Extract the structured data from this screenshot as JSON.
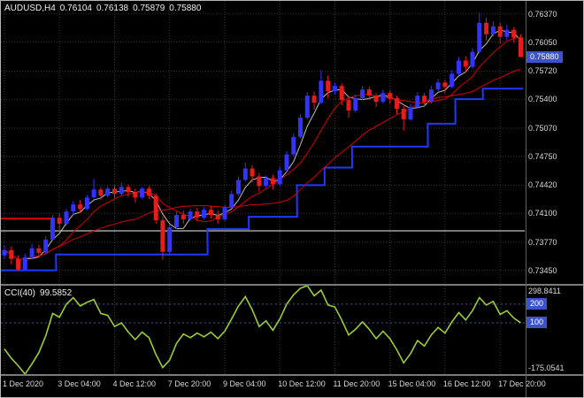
{
  "header": {
    "symbol": "AUDUSD,H4",
    "open": "0.76104",
    "high": "0.76138",
    "low": "0.75879",
    "close": "0.75880"
  },
  "indicator": {
    "name": "CCI(40)",
    "value": "99.5852"
  },
  "colors": {
    "background": "#000000",
    "border": "#b4b4b4",
    "grid": "#383838",
    "bull": "#3333ff",
    "bear": "#e81c1c",
    "step_line": "#2038ff",
    "ma_white": "#bdbdbd",
    "ma_red": "#d40000",
    "hline_dark": "#787878",
    "hline_red": "#d40000",
    "cci_line": "#9acd32",
    "level_line": "#44549e",
    "badge": "#3c52cc",
    "axis_text": "#d9d9d9",
    "separator": "#7a7a7a"
  },
  "chart_data": [
    {
      "type": "candlestick",
      "title": "AUDUSD,H4",
      "ylim": [
        0.73295,
        0.7652
      ],
      "y_ticks": [
        "0.76370",
        "0.76050",
        "0.75720",
        "0.75400",
        "0.75070",
        "0.74750",
        "0.74420",
        "0.74100",
        "0.73770",
        "0.73450"
      ],
      "current_price": "0.75880",
      "x_ticks": [
        {
          "i": 0,
          "label": "1 Dec 2020"
        },
        {
          "i": 8,
          "label": "3 Dec 04:00"
        },
        {
          "i": 16,
          "label": "4 Dec 12:00"
        },
        {
          "i": 24,
          "label": "7 Dec 20:00"
        },
        {
          "i": 32,
          "label": "9 Dec 04:00"
        },
        {
          "i": 40,
          "label": "10 Dec 12:00"
        },
        {
          "i": 48,
          "label": "11 Dec 20:00"
        },
        {
          "i": 56,
          "label": "15 Dec 04:00"
        },
        {
          "i": 64,
          "label": "16 Dec 12:00"
        },
        {
          "i": 72,
          "label": "17 Dec 20:00"
        }
      ],
      "candles": [
        [
          0.7362,
          0.7374,
          0.7358,
          0.7368
        ],
        [
          0.7368,
          0.7372,
          0.7352,
          0.7358
        ],
        [
          0.7358,
          0.7362,
          0.7344,
          0.7346
        ],
        [
          0.7346,
          0.7364,
          0.7345,
          0.736
        ],
        [
          0.736,
          0.7375,
          0.7358,
          0.737
        ],
        [
          0.737,
          0.7374,
          0.736,
          0.7365
        ],
        [
          0.7365,
          0.7384,
          0.7363,
          0.738
        ],
        [
          0.738,
          0.7408,
          0.7378,
          0.7405
        ],
        [
          0.7405,
          0.741,
          0.7392,
          0.7398
        ],
        [
          0.7398,
          0.7415,
          0.7396,
          0.7412
        ],
        [
          0.7412,
          0.7424,
          0.7408,
          0.742
        ],
        [
          0.742,
          0.7425,
          0.741,
          0.7415
        ],
        [
          0.7415,
          0.7431,
          0.7413,
          0.7428
        ],
        [
          0.7428,
          0.7449,
          0.7426,
          0.7437
        ],
        [
          0.7437,
          0.744,
          0.7425,
          0.743
        ],
        [
          0.743,
          0.7441,
          0.7428,
          0.7438
        ],
        [
          0.7438,
          0.7442,
          0.7427,
          0.7432
        ],
        [
          0.7432,
          0.7445,
          0.743,
          0.744
        ],
        [
          0.744,
          0.7443,
          0.7429,
          0.7434
        ],
        [
          0.7434,
          0.7438,
          0.7422,
          0.7428
        ],
        [
          0.7428,
          0.744,
          0.7426,
          0.7438
        ],
        [
          0.7438,
          0.7441,
          0.7426,
          0.743
        ],
        [
          0.743,
          0.7433,
          0.7398,
          0.7402
        ],
        [
          0.7402,
          0.7406,
          0.7357,
          0.7366
        ],
        [
          0.7366,
          0.7398,
          0.7362,
          0.7394
        ],
        [
          0.7394,
          0.7412,
          0.7392,
          0.7408
        ],
        [
          0.7408,
          0.7413,
          0.7398,
          0.7403
        ],
        [
          0.7403,
          0.7415,
          0.7401,
          0.7412
        ],
        [
          0.7412,
          0.7416,
          0.7401,
          0.7405
        ],
        [
          0.7405,
          0.7417,
          0.7403,
          0.7414
        ],
        [
          0.7414,
          0.7418,
          0.7404,
          0.7408
        ],
        [
          0.7408,
          0.7413,
          0.7398,
          0.7403
        ],
        [
          0.7403,
          0.742,
          0.7401,
          0.7417
        ],
        [
          0.7417,
          0.7436,
          0.7415,
          0.7432
        ],
        [
          0.7432,
          0.7452,
          0.743,
          0.7448
        ],
        [
          0.7448,
          0.7468,
          0.7446,
          0.7461
        ],
        [
          0.7461,
          0.7465,
          0.7445,
          0.7452
        ],
        [
          0.7452,
          0.7456,
          0.7434,
          0.7441
        ],
        [
          0.7441,
          0.7453,
          0.7439,
          0.745
        ],
        [
          0.745,
          0.7454,
          0.7437,
          0.7443
        ],
        [
          0.7443,
          0.7463,
          0.7441,
          0.7459
        ],
        [
          0.7459,
          0.7481,
          0.7457,
          0.7477
        ],
        [
          0.7477,
          0.7501,
          0.7475,
          0.7497
        ],
        [
          0.7497,
          0.7523,
          0.7495,
          0.7519
        ],
        [
          0.7519,
          0.7548,
          0.7517,
          0.7544
        ],
        [
          0.7544,
          0.7549,
          0.7528,
          0.7536
        ],
        [
          0.7536,
          0.7573,
          0.7534,
          0.7561
        ],
        [
          0.7561,
          0.7567,
          0.7541,
          0.7549
        ],
        [
          0.7549,
          0.7559,
          0.7545,
          0.7555
        ],
        [
          0.7555,
          0.7558,
          0.7533,
          0.7539
        ],
        [
          0.7539,
          0.7543,
          0.7519,
          0.7527
        ],
        [
          0.7527,
          0.7545,
          0.7525,
          0.7541
        ],
        [
          0.7541,
          0.7555,
          0.7539,
          0.7551
        ],
        [
          0.7551,
          0.7554,
          0.7539,
          0.7544
        ],
        [
          0.7544,
          0.7547,
          0.7531,
          0.7537
        ],
        [
          0.7537,
          0.7551,
          0.7535,
          0.7547
        ],
        [
          0.7547,
          0.755,
          0.7535,
          0.7541
        ],
        [
          0.7541,
          0.7544,
          0.7523,
          0.7529
        ],
        [
          0.7529,
          0.7532,
          0.7504,
          0.7517
        ],
        [
          0.7517,
          0.7535,
          0.7515,
          0.7531
        ],
        [
          0.7531,
          0.7548,
          0.7529,
          0.7544
        ],
        [
          0.7544,
          0.7547,
          0.7531,
          0.7537
        ],
        [
          0.7537,
          0.7555,
          0.7535,
          0.7551
        ],
        [
          0.7551,
          0.7563,
          0.7549,
          0.7559
        ],
        [
          0.7559,
          0.7562,
          0.7547,
          0.7554
        ],
        [
          0.7554,
          0.7573,
          0.7552,
          0.7569
        ],
        [
          0.7569,
          0.7588,
          0.7567,
          0.7584
        ],
        [
          0.7584,
          0.7589,
          0.7571,
          0.7577
        ],
        [
          0.7577,
          0.7598,
          0.7575,
          0.7594
        ],
        [
          0.7594,
          0.7639,
          0.7592,
          0.7627
        ],
        [
          0.7627,
          0.7633,
          0.7607,
          0.7614
        ],
        [
          0.7614,
          0.7629,
          0.7611,
          0.7623
        ],
        [
          0.7623,
          0.7627,
          0.7603,
          0.7611
        ],
        [
          0.7611,
          0.7625,
          0.7607,
          0.7619
        ],
        [
          0.7619,
          0.7622,
          0.7604,
          0.761
        ],
        [
          0.76104,
          0.76138,
          0.75879,
          0.7588
        ]
      ],
      "moving_averages": [
        {
          "period": 4,
          "color_key": "ma_white"
        },
        {
          "period": 8,
          "color_key": "ma_red"
        },
        {
          "period": 20,
          "color_key": "ma_red"
        }
      ],
      "step_line": {
        "color_key": "step_line",
        "segments": [
          [
            0,
            7,
            0.7345
          ],
          [
            8,
            29,
            0.7363
          ],
          [
            30,
            35,
            0.7392
          ],
          [
            36,
            42,
            0.7406
          ],
          [
            43,
            46,
            0.7442
          ],
          [
            47,
            50,
            0.7462
          ],
          [
            51,
            61,
            0.7486
          ],
          [
            62,
            65,
            0.7512
          ],
          [
            66,
            69,
            0.754
          ],
          [
            70,
            79,
            0.7552
          ]
        ]
      },
      "hlines": [
        {
          "price": 0.739,
          "x_from": 0,
          "x_to": 592,
          "color_key": "hline_dark",
          "w": 2
        },
        {
          "price": 0.7404,
          "x_from": 0,
          "x_to": 58,
          "color_key": "hline_red",
          "w": 2
        }
      ]
    },
    {
      "type": "line",
      "title": "CCI(40)",
      "ylim": [
        -175.0541,
        298.8411
      ],
      "scale_labels": {
        "top": "298.8411",
        "bottom": "-175.0541"
      },
      "levels": [
        {
          "value": 200,
          "label": "200"
        },
        {
          "value": 100,
          "label": "100"
        }
      ],
      "values": [
        -40,
        -90,
        -130,
        -175,
        -120,
        -60,
        30,
        150,
        130,
        200,
        235,
        190,
        210,
        225,
        150,
        140,
        80,
        100,
        50,
        10,
        50,
        20,
        -70,
        -140,
        -100,
        -10,
        40,
        20,
        45,
        25,
        50,
        15,
        55,
        120,
        190,
        240,
        170,
        80,
        110,
        60,
        120,
        200,
        250,
        285,
        298.84,
        245,
        275,
        195,
        185,
        115,
        35,
        65,
        105,
        65,
        15,
        55,
        15,
        -45,
        -115,
        -65,
        5,
        -25,
        35,
        75,
        45,
        105,
        155,
        115,
        165,
        235,
        195,
        215,
        145,
        165,
        125,
        99.5852
      ]
    }
  ]
}
